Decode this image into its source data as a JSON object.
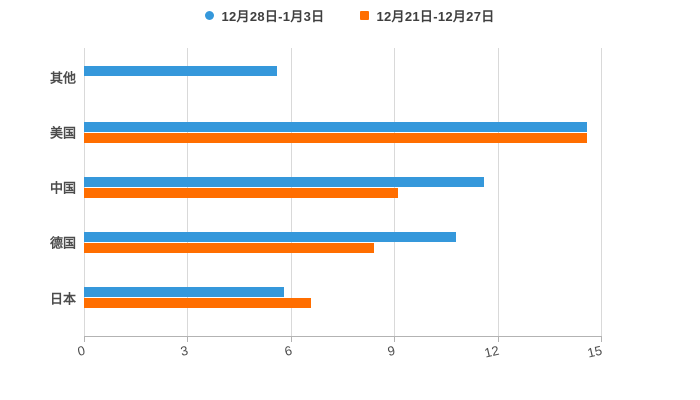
{
  "page": {
    "background_color": "#ffffff",
    "title": ""
  },
  "legend": {
    "position": "top-center",
    "items": [
      {
        "label": "12月28日-1月3日",
        "color": "#3598db",
        "marker_shape": "circle"
      },
      {
        "label": "12月21日-12月27日",
        "color": "#ff6e00",
        "marker_shape": "square"
      }
    ]
  },
  "chart_data": {
    "type": "bar",
    "orientation": "horizontal",
    "title": "",
    "xlabel": "",
    "ylabel": "",
    "categories": [
      "其他",
      "美国",
      "中国",
      "德国",
      "日本"
    ],
    "series": [
      {
        "name": "12月28日-1月3日",
        "color": "#3598db",
        "values": [
          5.6,
          14.6,
          11.6,
          10.8,
          5.8
        ]
      },
      {
        "name": "12月21日-12月27日",
        "color": "#ff6e00",
        "values": [
          null,
          14.6,
          9.1,
          8.4,
          6.6
        ]
      }
    ],
    "xlim": [
      0,
      15
    ],
    "xticks": [
      0,
      3,
      6,
      9,
      12,
      15
    ],
    "xtick_labels": [
      "0",
      "3",
      "6",
      "9",
      "12",
      "15"
    ],
    "grid": "vertical-only",
    "legend_position": "top-center"
  },
  "colors": {
    "gridline": "#d9d9d9",
    "axis_line": "#b3b3b3",
    "tick_label": "#4c4c4c",
    "category_label": "#4c4c4c",
    "legend_text": "#3f3f3f"
  }
}
